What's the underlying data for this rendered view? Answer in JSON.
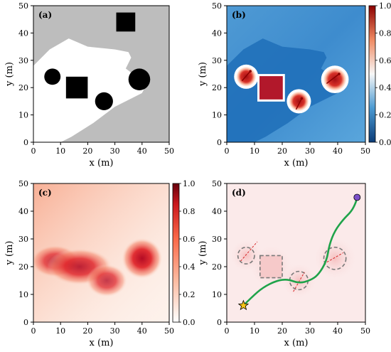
{
  "chart_data": [
    {
      "panel": "(a)",
      "type": "map",
      "xlabel": "x (m)",
      "ylabel": "y (m)",
      "xlim": [
        0,
        50
      ],
      "ylim": [
        0,
        50
      ],
      "xticks": [
        0,
        10,
        20,
        30,
        40,
        50
      ],
      "yticks": [
        0,
        10,
        20,
        30,
        40,
        50
      ],
      "colors": {
        "free": "#ffffff",
        "blocked": "#bdbdbd",
        "obstacle": "#000000"
      },
      "free_region": [
        [
          0,
          0
        ],
        [
          0,
          28
        ],
        [
          6,
          34
        ],
        [
          13,
          38
        ],
        [
          20,
          35
        ],
        [
          30,
          34
        ],
        [
          35,
          33
        ],
        [
          36,
          31
        ],
        [
          34,
          27
        ],
        [
          38,
          24
        ],
        [
          41,
          20
        ],
        [
          40,
          18
        ],
        [
          30,
          13
        ],
        [
          22,
          7
        ],
        [
          14,
          2
        ],
        [
          10,
          0
        ]
      ],
      "obstacles": [
        {
          "shape": "circle",
          "cx": 7,
          "cy": 24,
          "r": 3
        },
        {
          "shape": "square",
          "cx": 16,
          "cy": 20,
          "half": 4
        },
        {
          "shape": "circle",
          "cx": 26,
          "cy": 15,
          "r": 3.3
        },
        {
          "shape": "circle",
          "cx": 39,
          "cy": 23,
          "r": 4
        },
        {
          "shape": "square",
          "cx": 34,
          "cy": 44,
          "half": 3.5
        }
      ]
    },
    {
      "panel": "(b)",
      "type": "heatmap",
      "xlabel": "x (m)",
      "ylabel": "y (m)",
      "xlim": [
        0,
        50
      ],
      "ylim": [
        0,
        50
      ],
      "xticks": [
        0,
        10,
        20,
        30,
        40,
        50
      ],
      "yticks": [
        0,
        10,
        20,
        30,
        40,
        50
      ],
      "colorbar": {
        "min": 0.0,
        "max": 1.0,
        "ticks": [
          0.0,
          0.2,
          0.4,
          0.6,
          0.8,
          1.0
        ],
        "colormap": "blue-white-red"
      },
      "hotspots": [
        {
          "cx": 7,
          "cy": 24,
          "r": 3.6
        },
        {
          "cx": 16,
          "cy": 20,
          "half": 4.2
        },
        {
          "cx": 26,
          "cy": 15,
          "r": 3.6
        },
        {
          "cx": 39,
          "cy": 23,
          "r": 4.2
        }
      ],
      "arrows": [
        {
          "x1": 5.5,
          "y1": 22.5,
          "x2": 8.5,
          "y2": 26
        },
        {
          "x1": 25,
          "y1": 12,
          "x2": 27,
          "y2": 16
        },
        {
          "x1": 36,
          "y1": 21.5,
          "x2": 40.5,
          "y2": 25
        }
      ]
    },
    {
      "panel": "(c)",
      "type": "heatmap",
      "xlabel": "x (m)",
      "ylabel": "y (m)",
      "xlim": [
        0,
        50
      ],
      "ylim": [
        0,
        50
      ],
      "xticks": [
        0,
        10,
        20,
        30,
        40,
        50
      ],
      "yticks": [
        0,
        10,
        20,
        30,
        40,
        50
      ],
      "colorbar": {
        "min": 0.0,
        "max": 1.0,
        "ticks": [
          0.0,
          0.2,
          0.4,
          0.6,
          0.8,
          1.0
        ],
        "colormap": "white-red"
      },
      "blobs": [
        {
          "cx": 8,
          "cy": 22,
          "rx": 6,
          "ry": 4,
          "v": 0.75
        },
        {
          "cx": 17,
          "cy": 20,
          "rx": 8,
          "ry": 4.5,
          "v": 0.85
        },
        {
          "cx": 27,
          "cy": 15,
          "rx": 5,
          "ry": 4,
          "v": 0.75
        },
        {
          "cx": 40,
          "cy": 23,
          "rx": 5,
          "ry": 5,
          "v": 0.95
        }
      ]
    },
    {
      "panel": "(d)",
      "type": "path",
      "xlabel": "x (m)",
      "ylabel": "y (m)",
      "xlim": [
        0,
        50
      ],
      "ylim": [
        0,
        50
      ],
      "xticks": [
        0,
        10,
        20,
        30,
        40,
        50
      ],
      "yticks": [
        0,
        10,
        20,
        30,
        40,
        50
      ],
      "start": {
        "x": 6,
        "y": 6
      },
      "goal": {
        "x": 47,
        "y": 45
      },
      "trajectory": [
        [
          6,
          6
        ],
        [
          9,
          9
        ],
        [
          13,
          12.5
        ],
        [
          18,
          15
        ],
        [
          22,
          15.5
        ],
        [
          26,
          14
        ],
        [
          30,
          15
        ],
        [
          33,
          17
        ],
        [
          36,
          22
        ],
        [
          37,
          28
        ],
        [
          39,
          33
        ],
        [
          42,
          37
        ],
        [
          45,
          40
        ],
        [
          46.5,
          43
        ],
        [
          47,
          45
        ]
      ],
      "obstacles_dashed": [
        {
          "shape": "circle",
          "cx": 7,
          "cy": 24,
          "r": 3
        },
        {
          "shape": "square",
          "cx": 16,
          "cy": 20,
          "half": 4
        },
        {
          "shape": "circle",
          "cx": 26,
          "cy": 15,
          "r": 3.3
        },
        {
          "shape": "circle",
          "cx": 39,
          "cy": 23,
          "r": 4
        }
      ],
      "velocity_dashes": [
        {
          "x1": 5,
          "y1": 22,
          "x2": 11,
          "y2": 29
        },
        {
          "x1": 24,
          "y1": 11,
          "x2": 28,
          "y2": 18
        },
        {
          "x1": 35,
          "y1": 21,
          "x2": 42,
          "y2": 25
        }
      ]
    }
  ]
}
